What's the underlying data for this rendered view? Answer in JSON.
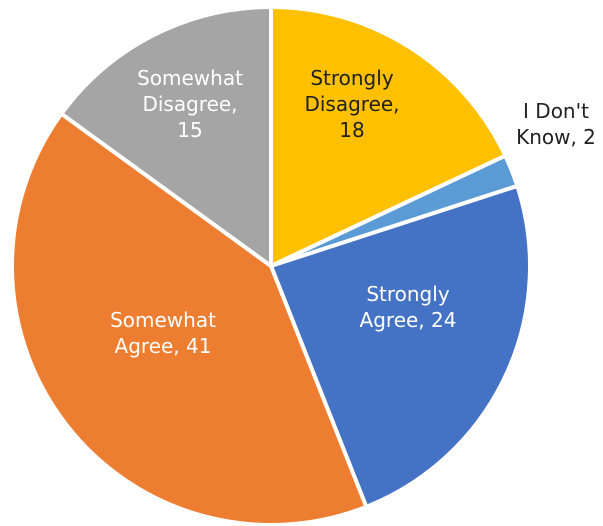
{
  "chart_data": {
    "type": "pie",
    "title": "",
    "slices": [
      {
        "label_lines": [
          "Strongly",
          "Disagree,",
          "18"
        ],
        "category": "Strongly Disagree",
        "value": 18,
        "color": "#FFC000",
        "label_color": "#222222"
      },
      {
        "label_lines": [
          "I Don't",
          "Know, 2"
        ],
        "category": "I Don't Know",
        "value": 2,
        "color": "#5B9BD5",
        "label_color": "#222222"
      },
      {
        "label_lines": [
          "Strongly",
          "Agree, 24"
        ],
        "category": "Strongly Agree",
        "value": 24,
        "color": "#4472C4",
        "label_color": "#ffffff"
      },
      {
        "label_lines": [
          "Somewhat",
          "Agree, 41"
        ],
        "category": "Somewhat Agree",
        "value": 41,
        "color": "#ED7D31",
        "label_color": "#ffffff"
      },
      {
        "label_lines": [
          "Somewhat",
          "Disagree,",
          "15"
        ],
        "category": "Somewhat Disagree",
        "value": 15,
        "color": "#A5A5A5",
        "label_color": "#ffffff"
      }
    ],
    "start": "top, clockwise",
    "legend": "none",
    "data_labels": "category and value"
  }
}
